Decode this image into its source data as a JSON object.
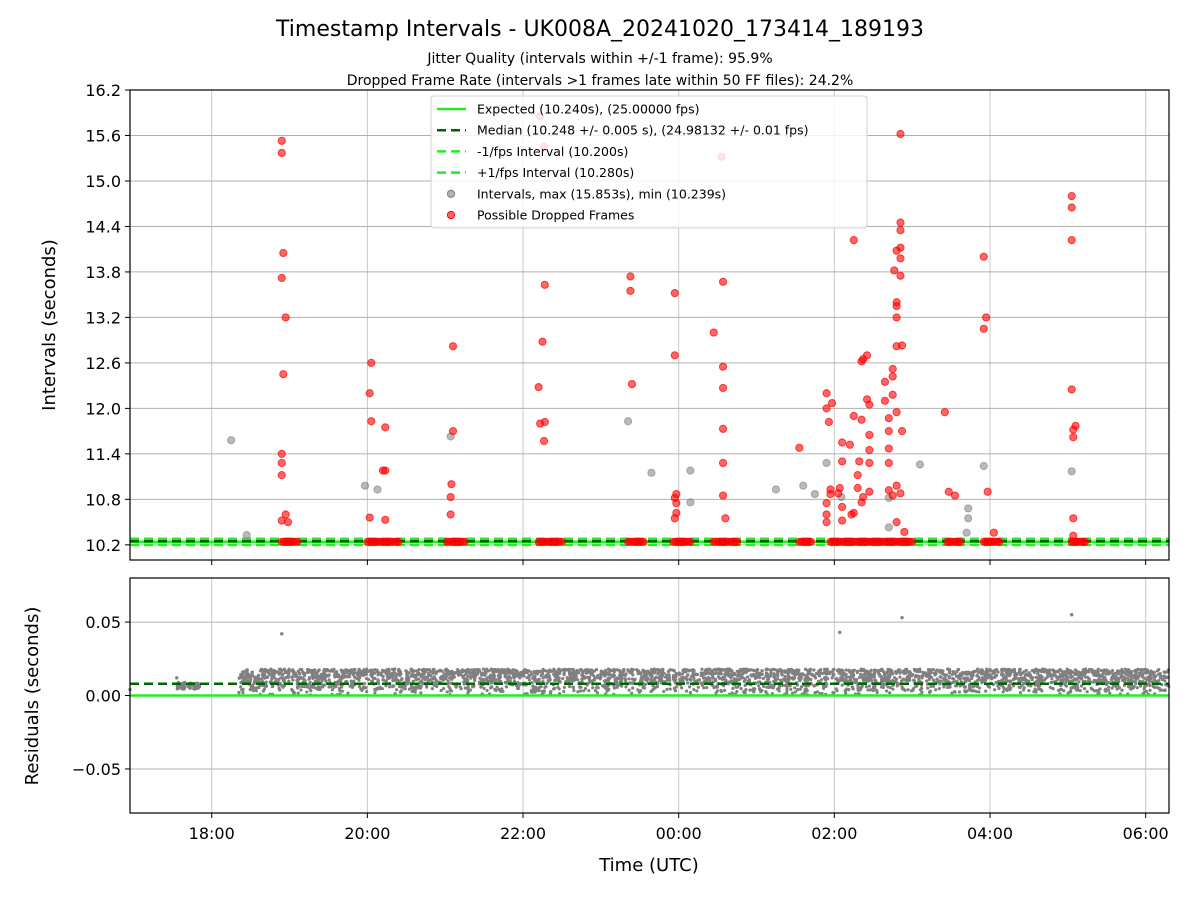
{
  "chart_data": [
    {
      "type": "scatter",
      "title": "Timestamp Intervals - UK008A_20241020_173414_189193",
      "subtitle_lines": [
        "Jitter Quality (intervals within +/-1 frame): 95.9%",
        "Dropped Frame Rate (intervals >1 frames late within 50 FF files): 24.2%"
      ],
      "xlabel": "",
      "ylabel": "Intervals (seconds)",
      "x_unit": "hours since 00:00 UTC (2024-10-21)",
      "xlim": [
        -7.05,
        6.3
      ],
      "ylim": [
        10.0,
        16.2
      ],
      "yticks": [
        "10.2",
        "10.8",
        "11.4",
        "12.0",
        "12.6",
        "13.2",
        "13.8",
        "14.4",
        "15.0",
        "15.6",
        "16.2"
      ],
      "grid": "horizontal",
      "legend_position": "top-center",
      "lines": [
        {
          "name": "Expected (10.240s), (25.00000 fps)",
          "y": 10.24,
          "style": "solid",
          "color": "#22ee22"
        },
        {
          "name": "Median (10.248 +/- 0.005 s), (24.98132 +/- 0.01 fps)",
          "y": 10.248,
          "style": "dashed",
          "color": "#006400"
        },
        {
          "name": "-1/fps Interval (10.200s)",
          "y": 10.2,
          "style": "dashed",
          "color": "#22ee22"
        },
        {
          "name": "+1/fps Interval (10.280s)",
          "y": 10.28,
          "style": "dashed",
          "color": "#22ee22"
        }
      ],
      "series": [
        {
          "name": "Intervals, max (15.853s), min (10.239s)",
          "color": "#808080",
          "points": [
            [
              -5.75,
              11.58
            ],
            [
              -5.55,
              10.33
            ],
            [
              -4.03,
              10.98
            ],
            [
              -3.87,
              10.93
            ],
            [
              -2.93,
              11.63
            ],
            [
              -0.65,
              11.83
            ],
            [
              -0.35,
              11.15
            ],
            [
              0.15,
              11.18
            ],
            [
              0.15,
              10.76
            ],
            [
              1.25,
              10.93
            ],
            [
              1.6,
              10.98
            ],
            [
              1.75,
              10.87
            ],
            [
              1.9,
              11.28
            ],
            [
              2.09,
              10.83
            ],
            [
              2.7,
              10.43
            ],
            [
              2.7,
              10.82
            ],
            [
              3.1,
              11.26
            ],
            [
              3.7,
              10.36
            ],
            [
              3.72,
              10.55
            ],
            [
              3.72,
              10.68
            ],
            [
              3.92,
              11.24
            ],
            [
              5.05,
              11.17
            ]
          ]
        },
        {
          "name": "Possible Dropped Frames",
          "color": "#ff0000",
          "points": [
            [
              -5.1,
              15.53
            ],
            [
              -5.1,
              15.37
            ],
            [
              -5.08,
              14.05
            ],
            [
              -5.1,
              13.72
            ],
            [
              -5.05,
              13.2
            ],
            [
              -5.08,
              12.45
            ],
            [
              -5.1,
              11.4
            ],
            [
              -5.1,
              11.28
            ],
            [
              -5.1,
              11.12
            ],
            [
              -5.05,
              10.6
            ],
            [
              -5.1,
              10.52
            ],
            [
              -5.02,
              10.5
            ],
            [
              -3.95,
              12.6
            ],
            [
              -3.97,
              12.2
            ],
            [
              -3.95,
              11.83
            ],
            [
              -3.77,
              11.75
            ],
            [
              -3.8,
              11.18
            ],
            [
              -3.77,
              11.18
            ],
            [
              -3.97,
              10.56
            ],
            [
              -3.77,
              10.53
            ],
            [
              -2.9,
              12.82
            ],
            [
              -2.9,
              11.7
            ],
            [
              -2.92,
              11.0
            ],
            [
              -2.93,
              10.83
            ],
            [
              -2.93,
              10.6
            ],
            [
              -1.78,
              15.85
            ],
            [
              -1.73,
              15.45
            ],
            [
              -1.8,
              12.28
            ],
            [
              -1.75,
              12.88
            ],
            [
              -1.72,
              13.63
            ],
            [
              -1.78,
              11.8
            ],
            [
              -1.72,
              11.82
            ],
            [
              -1.73,
              11.57
            ],
            [
              -0.62,
              13.74
            ],
            [
              -0.62,
              13.55
            ],
            [
              -0.6,
              12.32
            ],
            [
              -0.05,
              13.52
            ],
            [
              -0.05,
              12.7
            ],
            [
              -0.03,
              10.87
            ],
            [
              -0.05,
              10.82
            ],
            [
              -0.03,
              10.75
            ],
            [
              -0.03,
              10.62
            ],
            [
              -0.05,
              10.55
            ],
            [
              0.45,
              13.0
            ],
            [
              0.55,
              15.32
            ],
            [
              0.57,
              13.67
            ],
            [
              0.57,
              12.55
            ],
            [
              0.57,
              12.27
            ],
            [
              0.57,
              11.73
            ],
            [
              0.57,
              11.28
            ],
            [
              0.57,
              10.85
            ],
            [
              0.6,
              10.55
            ],
            [
              1.55,
              11.48
            ],
            [
              1.9,
              12.2
            ],
            [
              1.9,
              12.0
            ],
            [
              1.93,
              11.82
            ],
            [
              1.95,
              10.93
            ],
            [
              1.9,
              10.75
            ],
            [
              1.9,
              10.6
            ],
            [
              1.9,
              10.5
            ],
            [
              1.95,
              10.87
            ],
            [
              1.97,
              12.07
            ],
            [
              2.07,
              10.95
            ],
            [
              2.1,
              11.55
            ],
            [
              2.1,
              11.3
            ],
            [
              2.05,
              10.88
            ],
            [
              2.1,
              10.7
            ],
            [
              2.1,
              10.52
            ],
            [
              2.2,
              11.52
            ],
            [
              2.25,
              14.22
            ],
            [
              2.25,
              11.9
            ],
            [
              2.25,
              10.62
            ],
            [
              2.22,
              10.6
            ],
            [
              2.35,
              11.85
            ],
            [
              2.32,
              11.3
            ],
            [
              2.3,
              11.12
            ],
            [
              2.3,
              10.95
            ],
            [
              2.35,
              10.76
            ],
            [
              2.37,
              10.83
            ],
            [
              2.35,
              12.62
            ],
            [
              2.37,
              12.65
            ],
            [
              2.42,
              12.7
            ],
            [
              2.42,
              12.12
            ],
            [
              2.45,
              12.05
            ],
            [
              2.45,
              11.65
            ],
            [
              2.45,
              11.45
            ],
            [
              2.45,
              11.28
            ],
            [
              2.45,
              10.9
            ],
            [
              2.65,
              12.35
            ],
            [
              2.65,
              12.1
            ],
            [
              2.7,
              11.87
            ],
            [
              2.7,
              11.47
            ],
            [
              2.7,
              11.28
            ],
            [
              2.7,
              10.92
            ],
            [
              2.75,
              10.85
            ],
            [
              2.75,
              12.18
            ],
            [
              2.75,
              12.42
            ],
            [
              2.75,
              12.52
            ],
            [
              2.7,
              11.7
            ],
            [
              2.77,
              13.82
            ],
            [
              2.8,
              14.08
            ],
            [
              2.8,
              13.4
            ],
            [
              2.8,
              13.35
            ],
            [
              2.8,
              13.2
            ],
            [
              2.8,
              12.82
            ],
            [
              2.8,
              11.95
            ],
            [
              2.85,
              15.62
            ],
            [
              2.85,
              14.45
            ],
            [
              2.85,
              14.35
            ],
            [
              2.85,
              14.12
            ],
            [
              2.85,
              13.98
            ],
            [
              2.85,
              13.75
            ],
            [
              2.87,
              12.83
            ],
            [
              2.87,
              11.7
            ],
            [
              2.85,
              10.88
            ],
            [
              2.8,
              10.98
            ],
            [
              2.8,
              10.5
            ],
            [
              2.9,
              10.37
            ],
            [
              3.42,
              11.95
            ],
            [
              3.47,
              10.9
            ],
            [
              3.55,
              10.85
            ],
            [
              3.92,
              14.0
            ],
            [
              3.92,
              13.05
            ],
            [
              3.95,
              13.2
            ],
            [
              3.97,
              10.9
            ],
            [
              4.05,
              10.36
            ],
            [
              5.05,
              14.8
            ],
            [
              5.05,
              14.65
            ],
            [
              5.05,
              14.22
            ],
            [
              5.05,
              12.25
            ],
            [
              5.07,
              11.72
            ],
            [
              5.1,
              11.77
            ],
            [
              5.07,
              11.62
            ],
            [
              5.07,
              10.55
            ],
            [
              5.07,
              10.32
            ]
          ],
          "baseline_clusters": [
            {
              "x_from": -5.1,
              "x_to": -4.9,
              "y": 10.24
            },
            {
              "x_from": -4.0,
              "x_to": -3.6,
              "y": 10.24
            },
            {
              "x_from": -2.98,
              "x_to": -2.75,
              "y": 10.24
            },
            {
              "x_from": -1.8,
              "x_to": -1.5,
              "y": 10.24
            },
            {
              "x_from": -0.65,
              "x_to": -0.45,
              "y": 10.24
            },
            {
              "x_from": -0.07,
              "x_to": 0.15,
              "y": 10.24
            },
            {
              "x_from": 0.45,
              "x_to": 0.75,
              "y": 10.24
            },
            {
              "x_from": 1.55,
              "x_to": 1.7,
              "y": 10.24
            },
            {
              "x_from": 1.95,
              "x_to": 3.0,
              "y": 10.24
            },
            {
              "x_from": 3.45,
              "x_to": 3.62,
              "y": 10.24
            },
            {
              "x_from": 3.92,
              "x_to": 4.12,
              "y": 10.24
            },
            {
              "x_from": 5.05,
              "x_to": 5.22,
              "y": 10.24
            }
          ]
        }
      ]
    },
    {
      "type": "scatter",
      "title": "",
      "xlabel": "Time (UTC)",
      "ylabel": "Residuals (seconds)",
      "xlim": [
        -7.05,
        6.3
      ],
      "ylim": [
        -0.08,
        0.08
      ],
      "yticks": [
        "−0.05",
        "0.00",
        "0.05"
      ],
      "xticks": [
        "18:00",
        "20:00",
        "22:00",
        "00:00",
        "02:00",
        "04:00",
        "06:00"
      ],
      "xtick_values": [
        -6,
        -4,
        -2,
        0,
        2,
        4,
        6
      ],
      "grid": "both",
      "lines": [
        {
          "name": "Expected",
          "y": 0.0,
          "style": "solid",
          "color": "#22ee22"
        },
        {
          "name": "Median",
          "y": 0.008,
          "style": "dashed",
          "color": "#006400"
        }
      ],
      "series": [
        {
          "name": "Residuals",
          "color": "#808080",
          "points": [
            [
              -5.1,
              0.042
            ],
            [
              2.07,
              0.043
            ],
            [
              2.87,
              0.053
            ],
            [
              5.05,
              0.055
            ],
            [
              -7.05,
              0.004
            ],
            [
              -6.45,
              0.012
            ],
            [
              -6.4,
              0.006
            ],
            [
              -5.6,
              0.016
            ],
            [
              -5.65,
              0.002
            ]
          ],
          "band": {
            "x_from": -5.65,
            "x_to": 6.3,
            "y_min": 0.0,
            "y_max": 0.018
          },
          "early_band": {
            "x_from": -6.45,
            "x_to": -6.15,
            "y_min": 0.004,
            "y_max": 0.009
          }
        }
      ]
    }
  ],
  "legend": [
    {
      "label": "Expected (10.240s), (25.00000 fps)",
      "kind": "line-solid",
      "color": "#22ee22"
    },
    {
      "label": "Median (10.248 +/- 0.005 s), (24.98132 +/- 0.01 fps)",
      "kind": "line-dashed",
      "color": "#006400"
    },
    {
      "label": "-1/fps Interval (10.200s)",
      "kind": "line-dashed",
      "color": "#22ee22"
    },
    {
      "label": "+1/fps Interval (10.280s)",
      "kind": "line-dashed",
      "color": "#22ee22"
    },
    {
      "label": "Intervals, max (15.853s), min (10.239s)",
      "kind": "marker",
      "color": "#808080"
    },
    {
      "label": "Possible Dropped Frames",
      "kind": "marker",
      "color": "#ff0000"
    }
  ]
}
